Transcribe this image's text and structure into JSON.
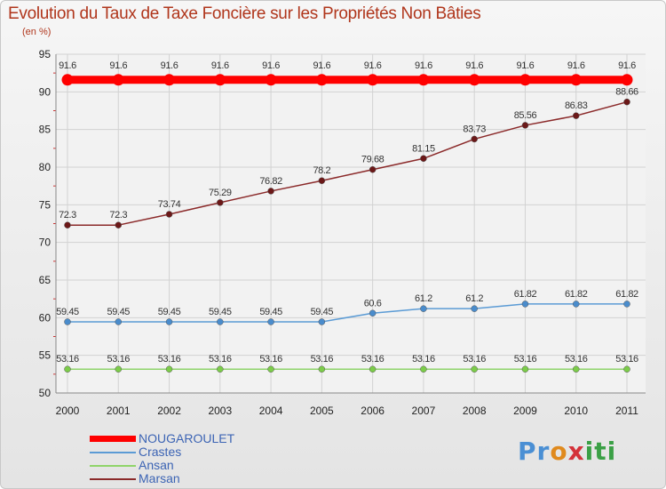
{
  "chart_data": {
    "type": "line",
    "title": "Evolution du Taux de Taxe Foncière sur les Propriétés Non Bâties",
    "subtitle": "(en %)",
    "categories": [
      "2000",
      "2001",
      "2002",
      "2003",
      "2004",
      "2005",
      "2006",
      "2007",
      "2008",
      "2009",
      "2010",
      "2011"
    ],
    "ylim": [
      50,
      95
    ],
    "yticks": [
      50,
      55,
      60,
      65,
      70,
      75,
      80,
      85,
      90,
      95
    ],
    "grid": true,
    "legend_position": "bottom-left",
    "series": [
      {
        "name": "NOUGAROULET",
        "color": "#ff0000",
        "marker_color": "#ff0000",
        "values": [
          91.6,
          91.6,
          91.6,
          91.6,
          91.6,
          91.6,
          91.6,
          91.6,
          91.6,
          91.6,
          91.6,
          91.6
        ],
        "labels": [
          "91.6",
          "91.6",
          "91.6",
          "91.6",
          "91.6",
          "91.6",
          "91.6",
          "91.6",
          "91.6",
          "91.6",
          "91.6",
          "91.6"
        ]
      },
      {
        "name": "Crastes",
        "color": "#5b9bd5",
        "marker_color": "#4a8ccc",
        "values": [
          59.45,
          59.45,
          59.45,
          59.45,
          59.45,
          59.45,
          60.6,
          61.2,
          61.2,
          61.82,
          61.82,
          61.82
        ],
        "labels": [
          "59.45",
          "59.45",
          "59.45",
          "59.45",
          "59.45",
          "59.45",
          "60.6",
          "61.2",
          "61.2",
          "61.82",
          "61.82",
          "61.82"
        ]
      },
      {
        "name": "Ansan",
        "color": "#8fd46a",
        "marker_color": "#7ccc4a",
        "values": [
          53.16,
          53.16,
          53.16,
          53.16,
          53.16,
          53.16,
          53.16,
          53.16,
          53.16,
          53.16,
          53.16,
          53.16
        ],
        "labels": [
          "53.16",
          "53.16",
          "53.16",
          "53.16",
          "53.16",
          "53.16",
          "53.16",
          "53.16",
          "53.16",
          "53.16",
          "53.16",
          "53.16"
        ]
      },
      {
        "name": "Marsan",
        "color": "#8b2a2a",
        "marker_color": "#6b1818",
        "values": [
          72.3,
          72.3,
          73.74,
          75.29,
          76.82,
          78.2,
          79.68,
          81.15,
          83.73,
          85.56,
          86.83,
          88.66
        ],
        "labels": [
          "72.3",
          "72.3",
          "73.74",
          "75.29",
          "76.82",
          "78.2",
          "79.68",
          "81.15",
          "83.73",
          "85.56",
          "86.83",
          "88.66"
        ]
      }
    ]
  },
  "logo": {
    "p1": "Pr",
    "p2": "o",
    "p3": "x",
    "p4": "iti"
  }
}
